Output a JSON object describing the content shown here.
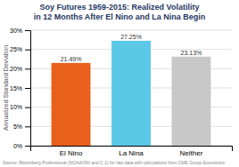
{
  "chart_data": {
    "type": "bar",
    "title": "Soy Futures 1959-2015: Realized Volatility",
    "subtitle": "in 12 Months After El Nino and La Nina Begin",
    "categories": [
      "El Nino",
      "La Nina",
      "Neither"
    ],
    "values": [
      21.49,
      27.25,
      23.13
    ],
    "value_labels": [
      "21.49%",
      "27.25%",
      "23.13%"
    ],
    "colors": [
      "#e8601c",
      "#5bc8e8",
      "#c8c8c8"
    ],
    "ylabel": "Annualized Standard Deviation",
    "ylim": [
      0,
      30
    ],
    "yticks": [
      {
        "value": 0,
        "label": "0%"
      },
      {
        "value": 5,
        "label": "5%"
      },
      {
        "value": 10,
        "label": "10%"
      },
      {
        "value": 15,
        "label": "15%"
      },
      {
        "value": 20,
        "label": "20%"
      },
      {
        "value": 25,
        "label": "25%"
      },
      {
        "value": 30,
        "label": "30%"
      }
    ],
    "grid": true,
    "data_labels": true,
    "annotations": [
      "Source: Bloomberg Professional (NOAAONI and C 1) for raw data with calculations from CME Group Economics"
    ]
  }
}
